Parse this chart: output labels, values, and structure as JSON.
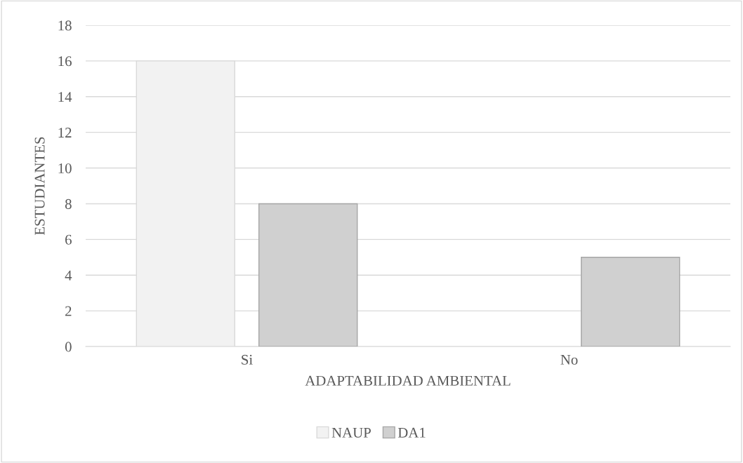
{
  "chart_data": {
    "type": "bar",
    "xlabel": "ADAPTABILIDAD AMBIENTAL",
    "ylabel": "ESTUDIANTES",
    "categories": [
      "Si",
      "No"
    ],
    "series": [
      {
        "name": "NAUP",
        "color": "#f2f2f2",
        "values": [
          16,
          0
        ]
      },
      {
        "name": "DA1",
        "color": "#d0d0d0",
        "values": [
          8,
          5
        ]
      }
    ],
    "ylim": [
      0,
      18
    ],
    "yticks": [
      0,
      2,
      4,
      6,
      8,
      10,
      12,
      14,
      16,
      18
    ],
    "grid": "y",
    "legend": "bottom"
  }
}
